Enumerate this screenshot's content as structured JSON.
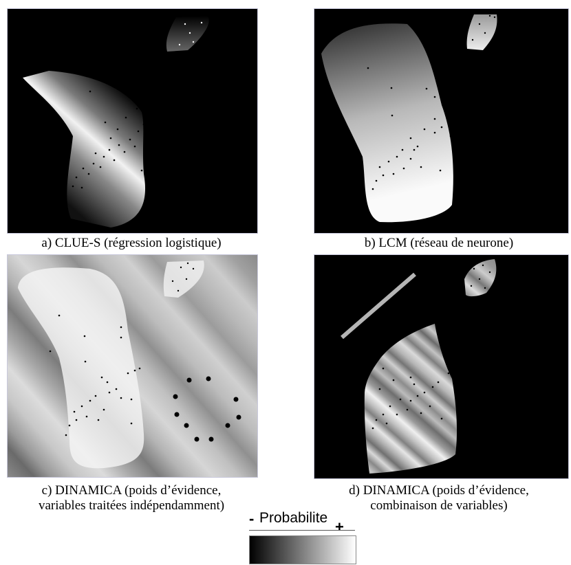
{
  "panels": [
    {
      "id": "a",
      "caption": "a) CLUE-S (régression logistique)"
    },
    {
      "id": "b",
      "caption": "b) LCM (réseau de neurone)"
    },
    {
      "id": "c",
      "caption_line1": "c) DINAMICA (poids d’évidence,",
      "caption_line2": "variables traitées indépendamment)"
    },
    {
      "id": "d",
      "caption_line1": "d) DINAMICA (poids d’évidence,",
      "caption_line2": "combinaison de variables)"
    }
  ],
  "legend": {
    "title": "Probabilite",
    "minus": "-",
    "plus": "+"
  },
  "colors": {
    "background": "#000000",
    "panel_border": "#c8c8dc"
  }
}
